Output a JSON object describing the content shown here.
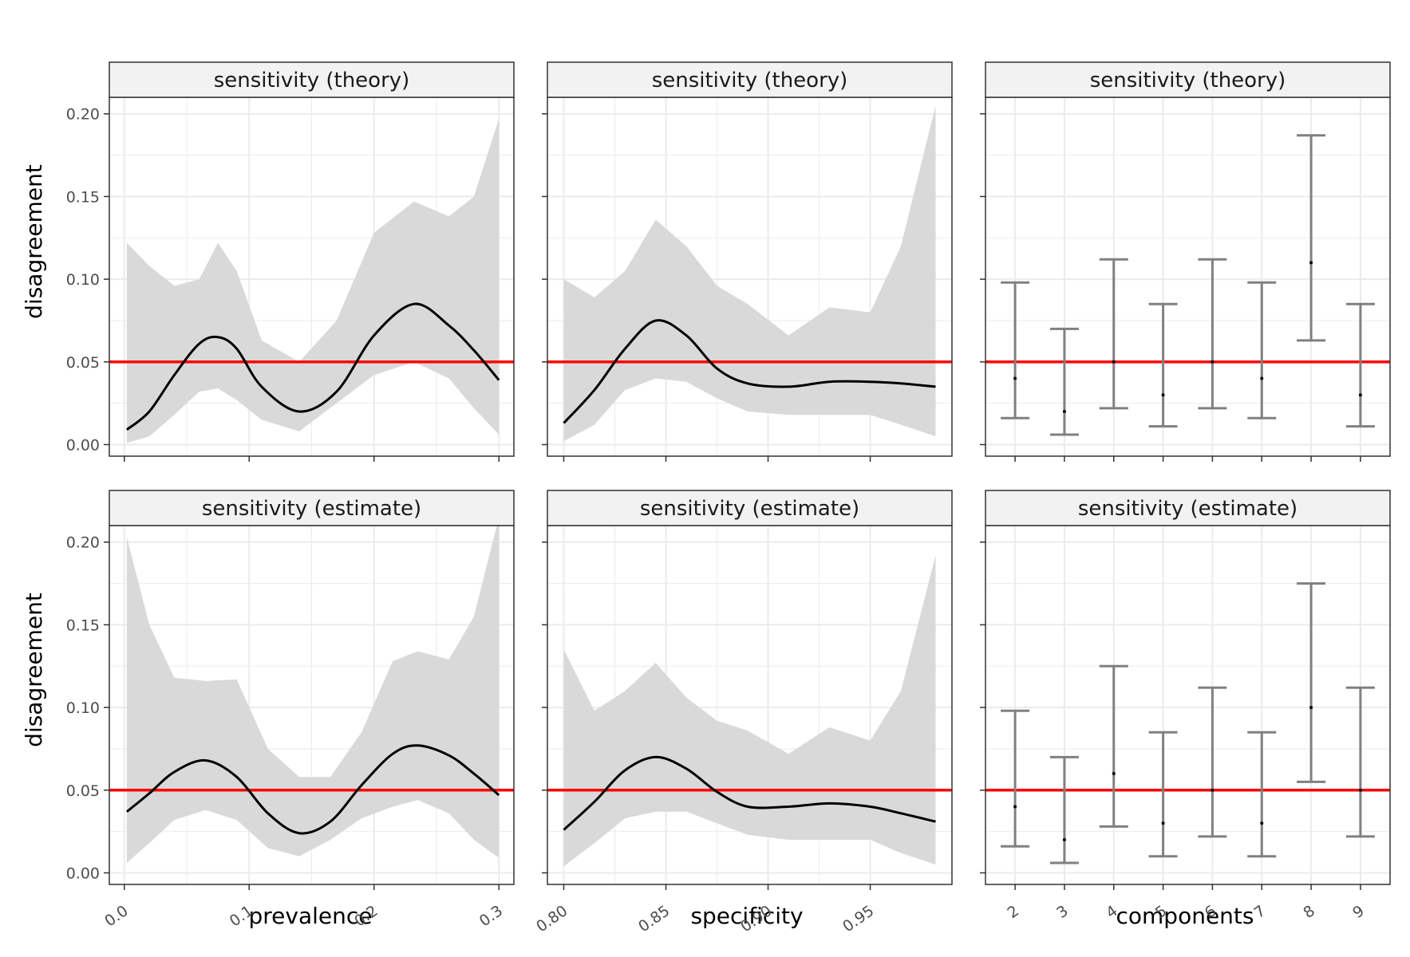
{
  "colors": {
    "reference_line": "#ff0000",
    "smooth_line": "#000000",
    "ribbon": "#d9d9d9",
    "errorbar": "#808080",
    "strip_fill": "#f2f2f2",
    "grid": "#ebebeb"
  },
  "shared": {
    "y_title": "disagreement",
    "y_ticks": [
      "0.00",
      "0.05",
      "0.10",
      "0.15",
      "0.20"
    ],
    "ylim": [
      -0.007,
      0.21
    ],
    "reference_y": 0.05,
    "row_labels": [
      "sensitivity (theory)",
      "sensitivity (estimate)"
    ],
    "x_titles": [
      "prevalence",
      "specificity",
      "components"
    ]
  },
  "chart_data": [
    {
      "type": "line",
      "row": 0,
      "col": 0,
      "strip": "sensitivity (theory)",
      "xlabel": "prevalence",
      "ylabel": "disagreement",
      "xlim": [
        -0.012,
        0.312
      ],
      "x_ticks": [
        "0.0",
        "0.1",
        "0.2",
        "0.3"
      ],
      "x_tick_values": [
        0.0,
        0.1,
        0.2,
        0.3
      ],
      "ylim": [
        -0.007,
        0.21
      ],
      "reference_y": 0.05,
      "x": [
        0.002,
        0.02,
        0.04,
        0.06,
        0.075,
        0.09,
        0.11,
        0.14,
        0.17,
        0.2,
        0.232,
        0.26,
        0.28,
        0.3
      ],
      "y": [
        0.009,
        0.02,
        0.042,
        0.061,
        0.065,
        0.058,
        0.035,
        0.02,
        0.032,
        0.066,
        0.085,
        0.072,
        0.057,
        0.039
      ],
      "lower": [
        0.001,
        0.005,
        0.018,
        0.032,
        0.034,
        0.027,
        0.015,
        0.008,
        0.025,
        0.042,
        0.05,
        0.04,
        0.022,
        0.006
      ],
      "upper": [
        0.122,
        0.108,
        0.096,
        0.1,
        0.122,
        0.105,
        0.063,
        0.05,
        0.075,
        0.128,
        0.147,
        0.138,
        0.15,
        0.197
      ]
    },
    {
      "type": "line",
      "row": 0,
      "col": 1,
      "strip": "sensitivity (theory)",
      "xlabel": "specificity",
      "ylabel": "disagreement",
      "xlim": [
        0.792,
        0.99
      ],
      "x_ticks": [
        "0.80",
        "0.85",
        "0.90",
        "0.95"
      ],
      "x_tick_values": [
        0.8,
        0.85,
        0.9,
        0.95
      ],
      "ylim": [
        -0.007,
        0.21
      ],
      "reference_y": 0.05,
      "x": [
        0.8,
        0.815,
        0.83,
        0.845,
        0.86,
        0.875,
        0.89,
        0.91,
        0.93,
        0.95,
        0.965,
        0.982
      ],
      "y": [
        0.013,
        0.033,
        0.058,
        0.075,
        0.066,
        0.046,
        0.037,
        0.035,
        0.038,
        0.038,
        0.037,
        0.035
      ],
      "lower": [
        0.002,
        0.012,
        0.033,
        0.04,
        0.038,
        0.028,
        0.02,
        0.018,
        0.018,
        0.018,
        0.012,
        0.005
      ],
      "upper": [
        0.1,
        0.089,
        0.105,
        0.136,
        0.12,
        0.096,
        0.085,
        0.066,
        0.083,
        0.08,
        0.12,
        0.205
      ]
    },
    {
      "type": "errorbar",
      "row": 0,
      "col": 2,
      "strip": "sensitivity (theory)",
      "xlabel": "components",
      "ylabel": "disagreement",
      "categories": [
        "2",
        "3",
        "4",
        "5",
        "6",
        "7",
        "8",
        "9"
      ],
      "ylim": [
        -0.007,
        0.21
      ],
      "reference_y": 0.05,
      "point": [
        0.04,
        0.02,
        0.05,
        0.03,
        0.05,
        0.04,
        0.11,
        0.03
      ],
      "lower": [
        0.016,
        0.006,
        0.022,
        0.011,
        0.022,
        0.016,
        0.063,
        0.011
      ],
      "upper": [
        0.098,
        0.07,
        0.112,
        0.085,
        0.112,
        0.098,
        0.187,
        0.085
      ]
    },
    {
      "type": "line",
      "row": 1,
      "col": 0,
      "strip": "sensitivity (estimate)",
      "xlabel": "prevalence",
      "ylabel": "disagreement",
      "xlim": [
        -0.012,
        0.312
      ],
      "x_ticks": [
        "0.0",
        "0.1",
        "0.2",
        "0.3"
      ],
      "x_tick_values": [
        0.0,
        0.1,
        0.2,
        0.3
      ],
      "ylim": [
        -0.007,
        0.21
      ],
      "reference_y": 0.05,
      "x": [
        0.002,
        0.02,
        0.04,
        0.065,
        0.09,
        0.115,
        0.14,
        0.165,
        0.19,
        0.215,
        0.235,
        0.26,
        0.28,
        0.3
      ],
      "y": [
        0.037,
        0.048,
        0.061,
        0.068,
        0.058,
        0.036,
        0.024,
        0.031,
        0.053,
        0.072,
        0.077,
        0.071,
        0.06,
        0.047
      ],
      "lower": [
        0.006,
        0.018,
        0.032,
        0.038,
        0.032,
        0.015,
        0.01,
        0.02,
        0.033,
        0.04,
        0.044,
        0.036,
        0.02,
        0.009
      ],
      "upper": [
        0.203,
        0.15,
        0.118,
        0.116,
        0.117,
        0.075,
        0.058,
        0.058,
        0.085,
        0.128,
        0.134,
        0.129,
        0.155,
        0.215
      ]
    },
    {
      "type": "line",
      "row": 1,
      "col": 1,
      "strip": "sensitivity (estimate)",
      "xlabel": "specificity",
      "ylabel": "disagreement",
      "xlim": [
        0.792,
        0.99
      ],
      "x_ticks": [
        "0.80",
        "0.85",
        "0.90",
        "0.95"
      ],
      "x_tick_values": [
        0.8,
        0.85,
        0.9,
        0.95
      ],
      "ylim": [
        -0.007,
        0.21
      ],
      "reference_y": 0.05,
      "x": [
        0.8,
        0.815,
        0.83,
        0.845,
        0.86,
        0.875,
        0.89,
        0.91,
        0.93,
        0.95,
        0.965,
        0.982
      ],
      "y": [
        0.026,
        0.043,
        0.062,
        0.07,
        0.063,
        0.049,
        0.04,
        0.04,
        0.042,
        0.04,
        0.036,
        0.031
      ],
      "lower": [
        0.004,
        0.018,
        0.033,
        0.037,
        0.037,
        0.03,
        0.023,
        0.02,
        0.02,
        0.02,
        0.012,
        0.005
      ],
      "upper": [
        0.135,
        0.098,
        0.11,
        0.127,
        0.106,
        0.092,
        0.086,
        0.072,
        0.088,
        0.08,
        0.11,
        0.192
      ]
    },
    {
      "type": "errorbar",
      "row": 1,
      "col": 2,
      "strip": "sensitivity (estimate)",
      "xlabel": "components",
      "ylabel": "disagreement",
      "categories": [
        "2",
        "3",
        "4",
        "5",
        "6",
        "7",
        "8",
        "9"
      ],
      "ylim": [
        -0.007,
        0.21
      ],
      "reference_y": 0.05,
      "point": [
        0.04,
        0.02,
        0.06,
        0.03,
        0.05,
        0.03,
        0.1,
        0.05
      ],
      "lower": [
        0.016,
        0.006,
        0.028,
        0.01,
        0.022,
        0.01,
        0.055,
        0.022
      ],
      "upper": [
        0.098,
        0.07,
        0.125,
        0.085,
        0.112,
        0.085,
        0.175,
        0.112
      ]
    }
  ]
}
